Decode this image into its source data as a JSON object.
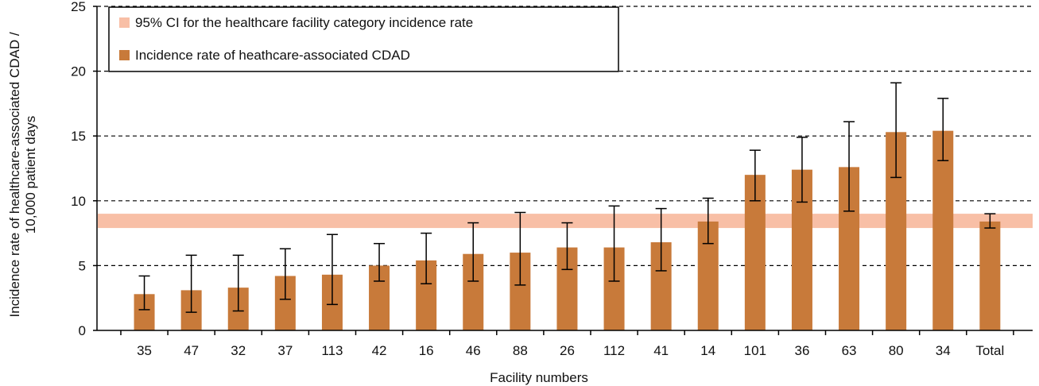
{
  "chart_data": {
    "type": "bar",
    "title": "",
    "xlabel": "Facility numbers",
    "ylabel_lines": [
      "Incidence rate of healthcare-associated CDAD /",
      "10,000 patient days"
    ],
    "ylim": [
      0,
      25
    ],
    "yticks": [
      0,
      5,
      10,
      15,
      20,
      25
    ],
    "ytick_labels": [
      "0",
      "5",
      "10",
      "15",
      "20",
      "25"
    ],
    "grid": "horizontal dashed",
    "legend_position": "top-left",
    "categories": [
      "35",
      "47",
      "32",
      "37",
      "113",
      "42",
      "16",
      "46",
      "88",
      "26",
      "112",
      "41",
      "14",
      "101",
      "36",
      "63",
      "80",
      "34",
      "Total"
    ],
    "series": [
      {
        "name": "Incidence rate of heathcare-associated CDAD",
        "color": "#c87a3a",
        "values": [
          2.8,
          3.1,
          3.3,
          4.2,
          4.3,
          5.0,
          5.4,
          5.9,
          6.0,
          6.4,
          6.4,
          6.8,
          8.4,
          12.0,
          12.4,
          12.6,
          15.3,
          15.4,
          8.4
        ],
        "error_low": [
          1.6,
          1.4,
          1.5,
          2.4,
          2.0,
          3.8,
          3.6,
          3.8,
          3.5,
          4.7,
          3.8,
          4.6,
          6.7,
          10.0,
          9.9,
          9.2,
          11.8,
          13.1,
          7.9
        ],
        "error_high": [
          4.2,
          5.8,
          5.8,
          6.3,
          7.4,
          6.7,
          7.5,
          8.3,
          9.1,
          8.3,
          9.6,
          9.4,
          10.2,
          13.9,
          14.9,
          16.1,
          19.1,
          17.9,
          9.0
        ]
      }
    ],
    "ci_band": {
      "name": "95% CI for the healthcare facility category incidence rate",
      "color": "#f8bfa6",
      "low": 7.9,
      "high": 9.0
    }
  }
}
